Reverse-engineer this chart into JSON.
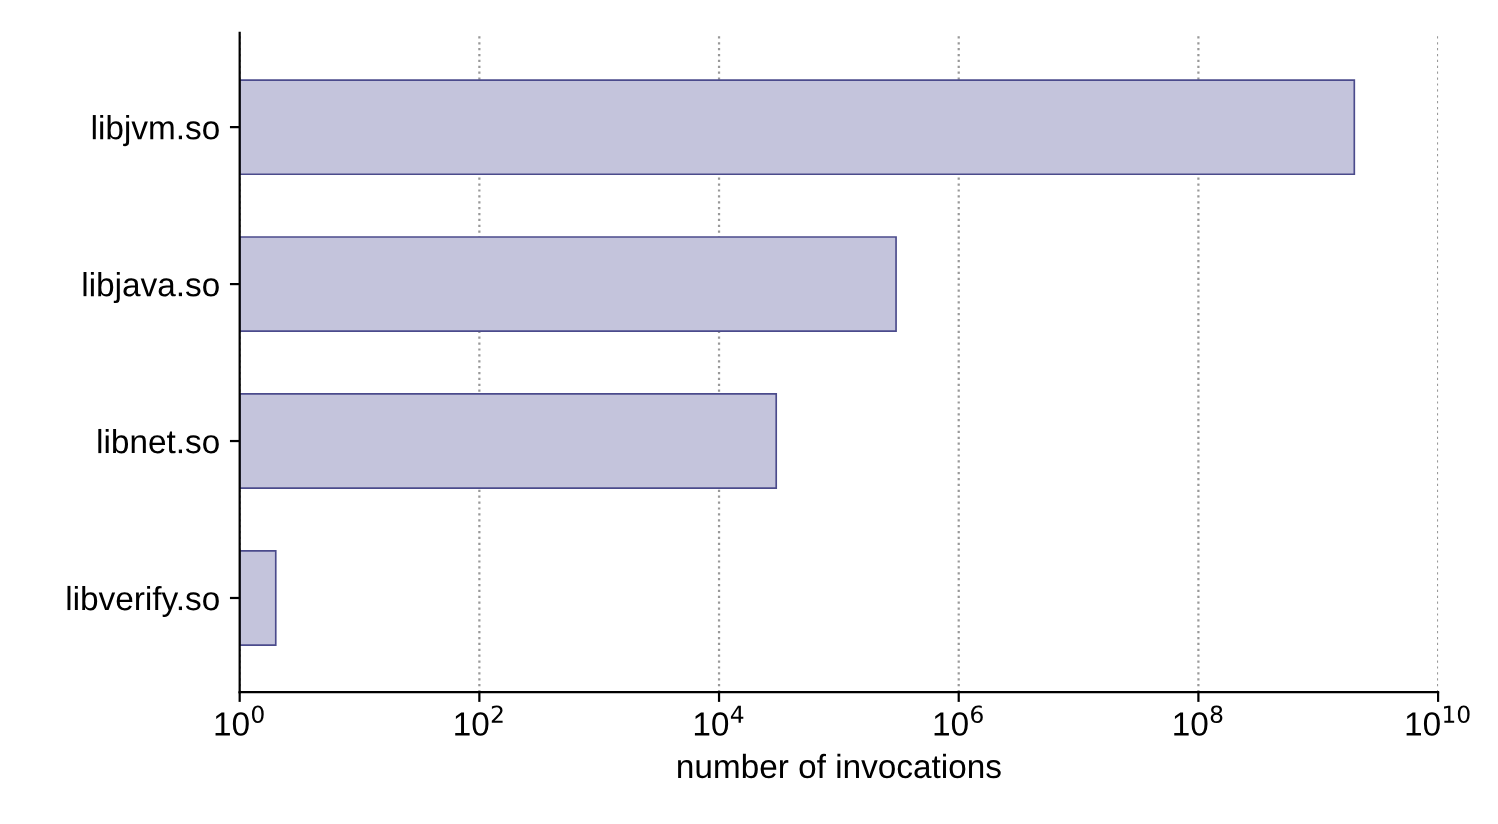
{
  "chart_data": {
    "type": "bar",
    "orientation": "horizontal",
    "log": "x",
    "categories": [
      "libjvm.so",
      "libjava.so",
      "libnet.so",
      "libverify.so"
    ],
    "values": [
      2000000000.0,
      300000.0,
      30000.0,
      2
    ],
    "color": "#c4c4dc",
    "xlabel": "number of invocations",
    "xlim": [
      1,
      10000000000
    ],
    "xticks": [
      {
        "value": 1,
        "label": "10$^{0}$"
      },
      {
        "value": 100,
        "label": "10$^{2}$"
      },
      {
        "value": 10000,
        "label": "10$^{4}$"
      },
      {
        "value": 1000000,
        "label": "10$^{6}$"
      },
      {
        "value": 100000000,
        "label": "10$^{8}$"
      },
      {
        "value": 10000000000,
        "label": "10$^{10}$"
      }
    ],
    "grid": "x"
  }
}
